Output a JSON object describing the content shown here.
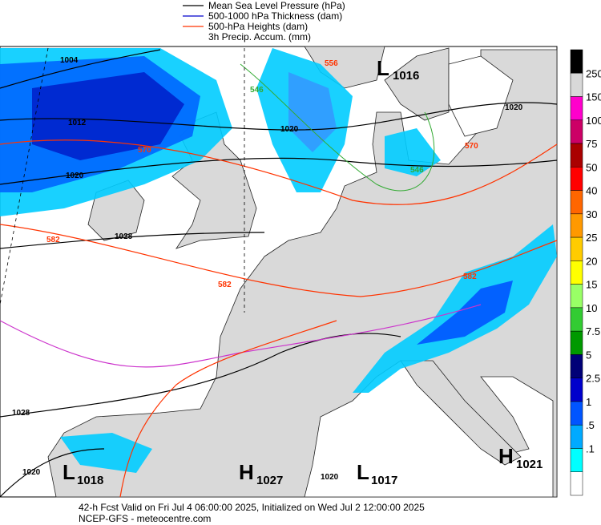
{
  "legend": [
    {
      "label": "Mean Sea Level Pressure (hPa)",
      "color": "#000000"
    },
    {
      "label": "500-1000 hPa Thickness (dam)",
      "color": "#0000cc"
    },
    {
      "label": "500-hPa Heights (dam)",
      "color": "#ff3300"
    },
    {
      "label": "3h Precip. Accum. (mm)"
    }
  ],
  "colorbar": {
    "labels": [
      "250",
      "150",
      "100",
      "75",
      "50",
      "40",
      "30",
      "25",
      "20",
      "15",
      "10",
      "7.5",
      "5",
      "2.5",
      "1",
      ".5",
      ".1"
    ],
    "colors": [
      "#000000",
      "#d8d8d8",
      "#ff00cc",
      "#cc0066",
      "#aa0000",
      "#ff0000",
      "#ff6600",
      "#ff9900",
      "#ffcc00",
      "#ffff00",
      "#99ff66",
      "#33cc33",
      "#009900",
      "#000077",
      "#0000cc",
      "#0055ff",
      "#00aaff",
      "#00ffff",
      "#ffffff"
    ]
  },
  "centers": [
    {
      "symbol": "L",
      "value": "1016"
    },
    {
      "symbol": "L",
      "value": "1018"
    },
    {
      "symbol": "H",
      "value": "1027"
    },
    {
      "symbol": "L",
      "value": "1017"
    },
    {
      "symbol": "H",
      "value": "1021"
    }
  ],
  "contour_labels": [
    "1004",
    "1012",
    "1020",
    "1028",
    "1020",
    "1028",
    "1020",
    "1020",
    "1020",
    "556",
    "546",
    "570",
    "582",
    "582",
    "546",
    "570",
    "582"
  ],
  "footer": [
    "42-h Fcst Valid on Fri Jul  4 06:00:00 2025, Initialized on Wed Jul  2 12:00:00 2025",
    "NCEP-GFS  - meteocentre.com"
  ]
}
